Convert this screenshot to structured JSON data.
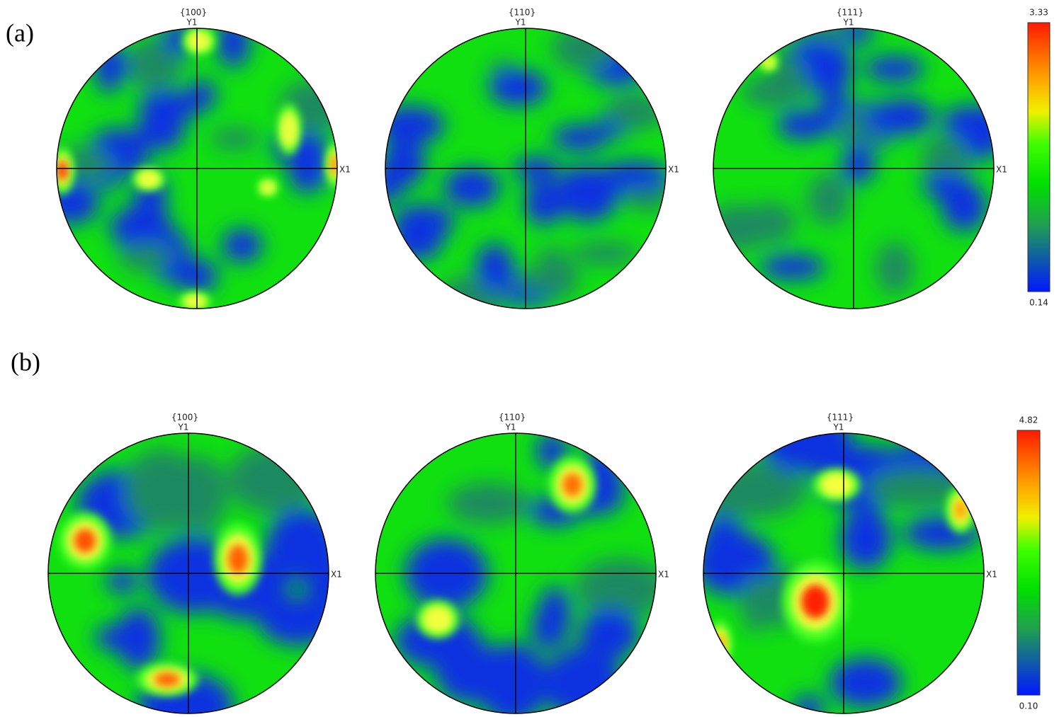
{
  "panels": [
    {
      "label": "(a)",
      "figures": [
        {
          "title": "{100}",
          "y_label": "Y1",
          "x_label": "X1"
        },
        {
          "title": "{110}",
          "y_label": "Y1",
          "x_label": "X1"
        },
        {
          "title": "{111}",
          "y_label": "Y1",
          "x_label": "X1"
        }
      ],
      "colorbar": {
        "max": "3.33",
        "min": "0.14"
      }
    },
    {
      "label": "(b)",
      "figures": [
        {
          "title": "{100}",
          "y_label": "Y1",
          "x_label": "X1"
        },
        {
          "title": "{110}",
          "y_label": "Y1",
          "x_label": "X1"
        },
        {
          "title": "{111}",
          "y_label": "Y1",
          "x_label": "X1"
        }
      ],
      "colorbar": {
        "max": "4.82",
        "min": "0.10"
      }
    }
  ]
}
